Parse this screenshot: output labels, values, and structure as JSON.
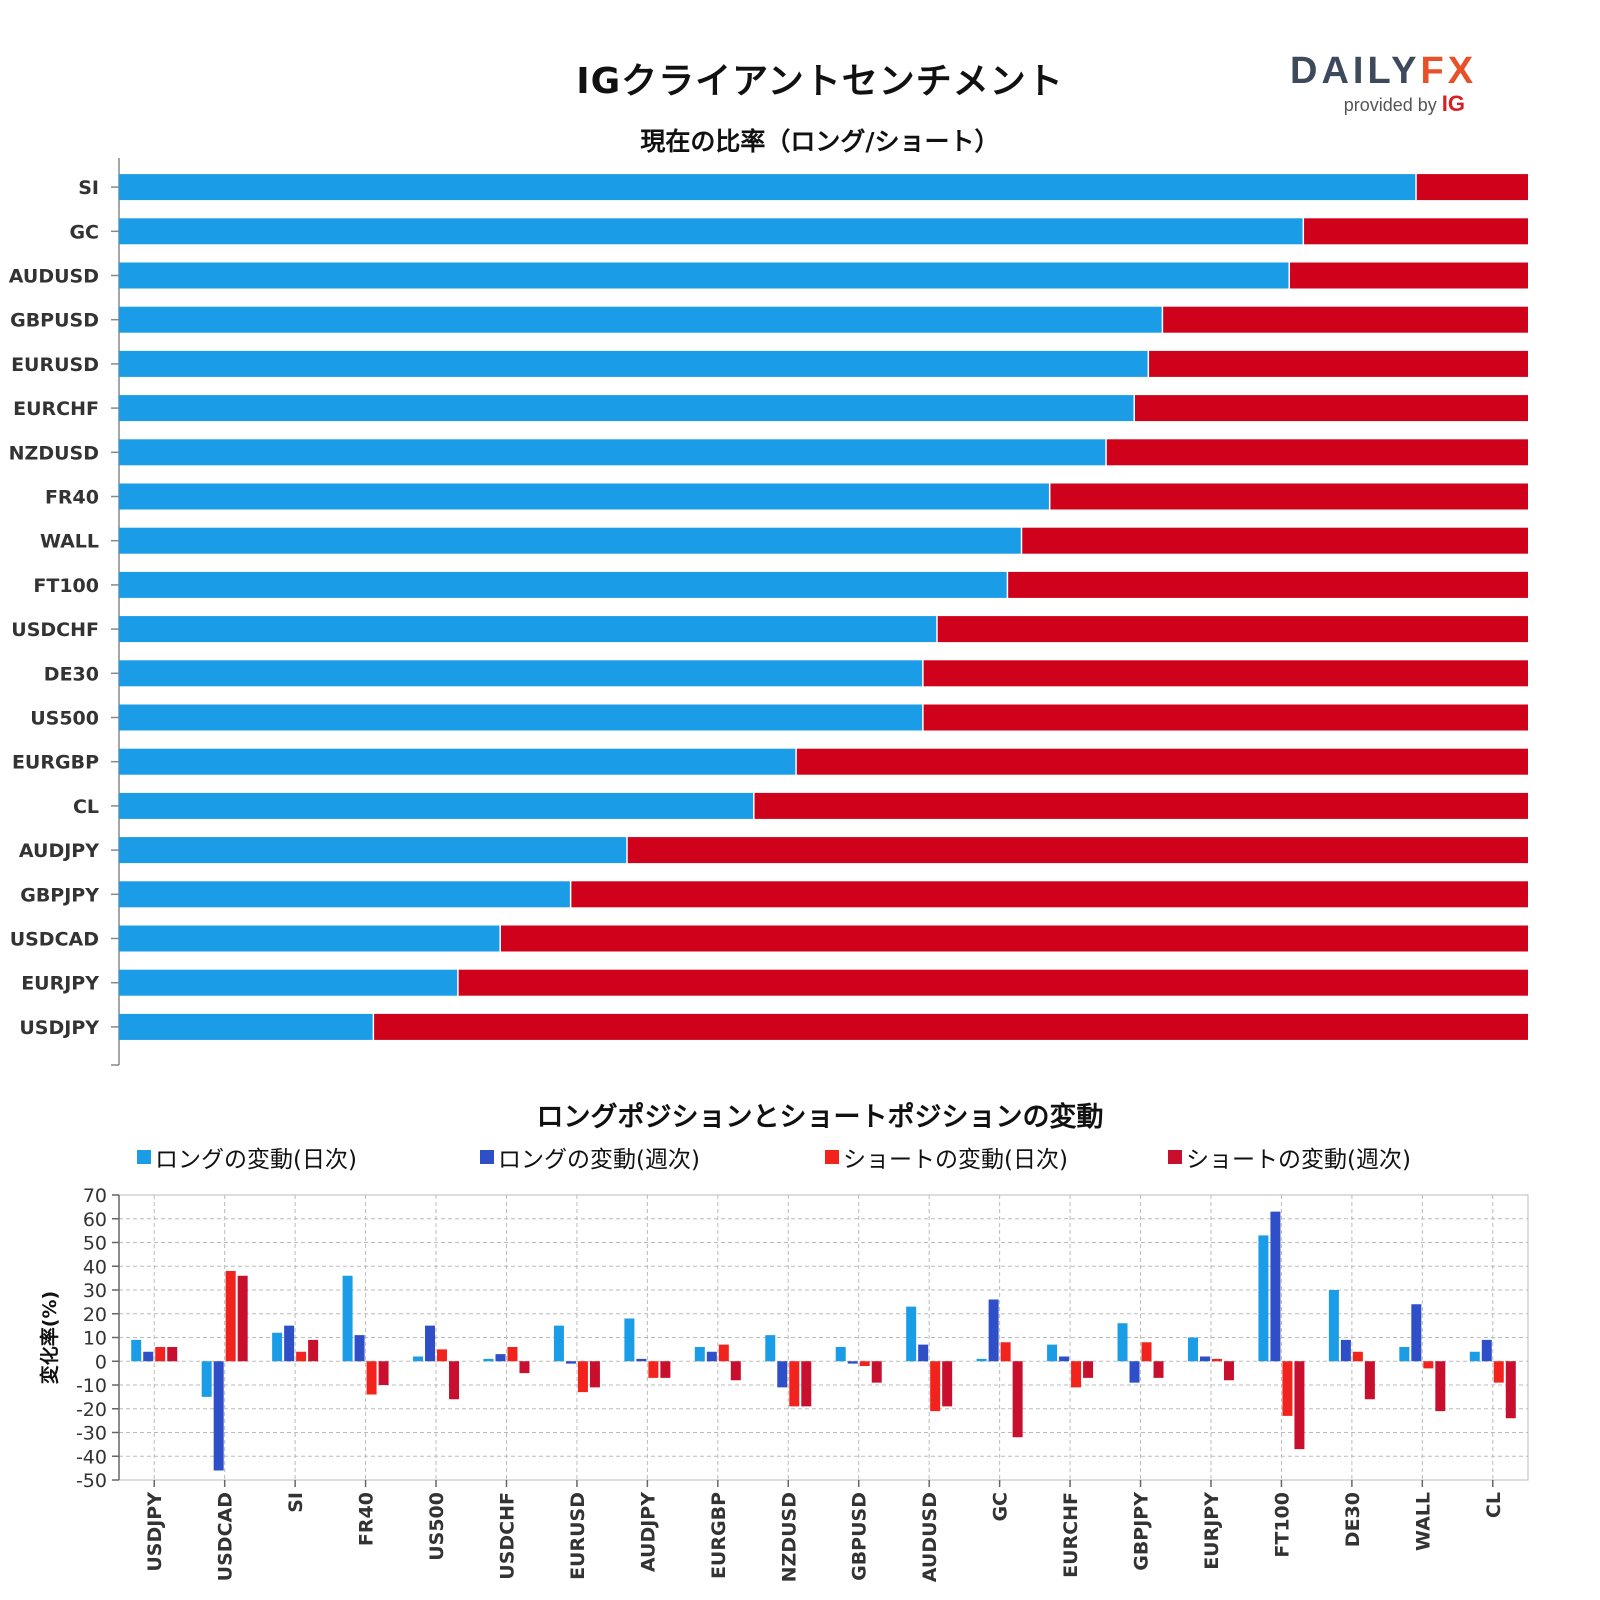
{
  "header": {
    "title": "IGクライアントセンチメント",
    "logo_main": "DAILY",
    "logo_fx": "FX",
    "logo_provided": "provided by",
    "logo_ig": "IG"
  },
  "colors": {
    "long": "#1a9de6",
    "short": "#d0021b",
    "long_daily": "#1a9de6",
    "long_weekly": "#2f4fc8",
    "short_daily": "#f2231d",
    "short_weekly": "#c8102e"
  },
  "chart_data": [
    {
      "type": "bar",
      "orientation": "horizontal-stacked",
      "title": "現在の比率（ロング/ショート）",
      "categories": [
        "SI",
        "GC",
        "AUDUSD",
        "GBPUSD",
        "EURUSD",
        "EURCHF",
        "NZDUSD",
        "FR40",
        "WALL",
        "FT100",
        "USDCHF",
        "DE30",
        "US500",
        "EURGBP",
        "CL",
        "AUDJPY",
        "GBPJPY",
        "USDCAD",
        "EURJPY",
        "USDJPY"
      ],
      "series": [
        {
          "values": [
            92,
            84,
            83,
            74,
            73,
            72,
            70,
            66,
            64,
            63,
            58,
            57,
            57,
            48,
            45,
            36,
            32,
            27,
            24,
            18
          ]
        },
        {
          "values": [
            8,
            16,
            17,
            26,
            27,
            28,
            30,
            34,
            36,
            37,
            42,
            43,
            43,
            52,
            55,
            64,
            68,
            73,
            76,
            82
          ]
        }
      ],
      "xlim": [
        0,
        100
      ]
    },
    {
      "type": "bar",
      "title": "ロングポジションとショートポジションの変動",
      "ylabel": "変化率(%)",
      "ylim": [
        -50,
        70
      ],
      "yticks": [
        70,
        60,
        50,
        40,
        30,
        20,
        10,
        0,
        -10,
        -20,
        -30,
        -40,
        -50
      ],
      "categories": [
        "USDJPY",
        "USDCAD",
        "SI",
        "FR40",
        "US500",
        "USDCHF",
        "EURUSD",
        "AUDJPY",
        "EURGBP",
        "NZDUSD",
        "GBPUSD",
        "AUDUSD",
        "GC",
        "EURCHF",
        "GBPJPY",
        "EURJPY",
        "FT100",
        "DE30",
        "WALL",
        "CL"
      ],
      "legend_position": "top",
      "grid": true,
      "series": [
        {
          "name": "ロングの変動(日次)",
          "values": [
            9,
            -15,
            12,
            36,
            2,
            1,
            15,
            18,
            6,
            11,
            6,
            23,
            1,
            7,
            16,
            10,
            53,
            30,
            6,
            4
          ]
        },
        {
          "name": "ロングの変動(週次)",
          "values": [
            4,
            -46,
            15,
            11,
            15,
            3,
            -1,
            1,
            4,
            -11,
            -1,
            7,
            26,
            2,
            -9,
            2,
            63,
            9,
            24,
            9
          ]
        },
        {
          "name": "ショートの変動(日次)",
          "values": [
            6,
            38,
            4,
            -14,
            5,
            6,
            -13,
            -7,
            7,
            -19,
            -2,
            -21,
            8,
            -11,
            8,
            1,
            -23,
            4,
            -3,
            -9
          ]
        },
        {
          "name": "ショートの変動(週次)",
          "values": [
            6,
            36,
            9,
            -10,
            -16,
            -5,
            -11,
            -7,
            -8,
            -19,
            -9,
            -19,
            -32,
            -7,
            -7,
            -8,
            -37,
            -16,
            -21,
            -24
          ]
        }
      ]
    }
  ]
}
